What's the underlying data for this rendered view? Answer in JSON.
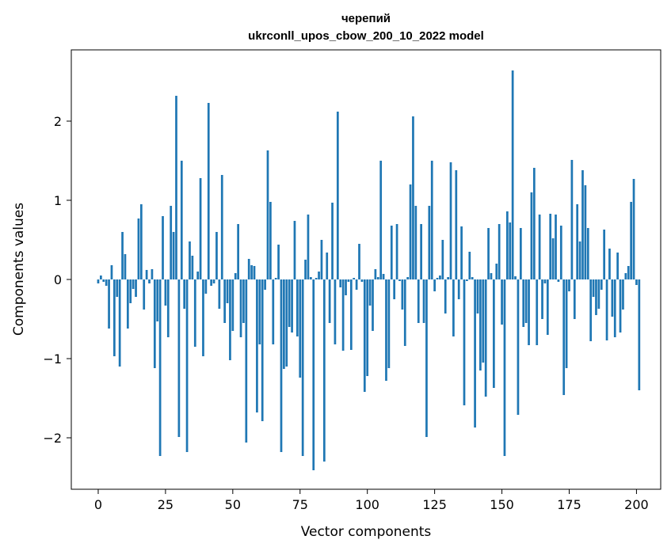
{
  "chart_data": {
    "type": "bar",
    "title_line1": "черепий",
    "title_line2": "ukrconll_upos_cbow_200_10_2022 model",
    "xlabel": "Vector components",
    "ylabel": "Components values",
    "xlim": [
      -10,
      209
    ],
    "ylim": [
      -2.65,
      2.9
    ],
    "x_ticks": [
      0,
      25,
      50,
      75,
      100,
      125,
      150,
      175,
      200
    ],
    "y_ticks": [
      -2,
      -1,
      0,
      1,
      2
    ],
    "x_tick_labels": [
      "0",
      "25",
      "50",
      "75",
      "100",
      "125",
      "150",
      "175",
      "200"
    ],
    "y_tick_labels": [
      "−2",
      "−1",
      "0",
      "1",
      "2"
    ],
    "bar_color": "#1f77b4",
    "grid": false,
    "values": [
      -0.05,
      0.05,
      -0.03,
      -0.08,
      -0.62,
      0.18,
      -0.97,
      -0.22,
      -1.1,
      0.6,
      0.32,
      -0.62,
      -0.3,
      -0.12,
      -0.22,
      0.77,
      0.95,
      -0.38,
      0.12,
      -0.05,
      0.13,
      -1.12,
      -0.53,
      -2.23,
      0.8,
      -0.33,
      -0.73,
      0.93,
      0.6,
      2.32,
      -1.99,
      1.5,
      -0.37,
      -2.18,
      0.48,
      0.3,
      -0.85,
      0.1,
      1.28,
      -0.97,
      -0.18,
      2.23,
      -0.08,
      -0.05,
      0.6,
      -0.37,
      1.32,
      -0.55,
      -0.3,
      -1.02,
      -0.65,
      0.08,
      0.7,
      -0.73,
      -0.55,
      -2.06,
      0.26,
      0.18,
      0.17,
      -1.68,
      -0.82,
      -1.79,
      -0.13,
      1.63,
      0.98,
      -0.82,
      0.02,
      0.44,
      -2.18,
      -1.13,
      -1.1,
      -0.6,
      -0.67,
      0.74,
      -0.72,
      -1.24,
      -2.23,
      0.25,
      0.82,
      0.03,
      -2.41,
      0.02,
      0.1,
      0.5,
      -2.3,
      0.34,
      -0.55,
      0.97,
      -0.82,
      2.12,
      -0.1,
      -0.9,
      -0.2,
      -0.03,
      -0.89,
      0.02,
      -0.13,
      0.45,
      -0.03,
      -1.42,
      -1.22,
      -0.33,
      -0.65,
      0.13,
      0.03,
      1.5,
      0.07,
      -1.28,
      -1.12,
      0.68,
      -0.25,
      0.7,
      -0.02,
      -0.38,
      -0.84,
      0.03,
      1.2,
      2.06,
      0.93,
      -0.55,
      0.7,
      -0.55,
      -1.99,
      0.93,
      1.5,
      -0.15,
      0.02,
      0.05,
      0.5,
      -0.43,
      0.03,
      1.48,
      -0.72,
      1.38,
      -0.25,
      0.67,
      -1.59,
      -0.02,
      0.35,
      0.03,
      -1.87,
      -0.43,
      -1.15,
      -1.05,
      -1.48,
      0.65,
      0.08,
      -1.37,
      0.2,
      0.7,
      -0.57,
      -2.23,
      0.86,
      0.72,
      2.64,
      0.04,
      -1.71,
      0.65,
      -0.6,
      -0.55,
      -0.83,
      1.1,
      1.41,
      -0.83,
      0.82,
      -0.5,
      -0.05,
      -0.7,
      0.83,
      0.52,
      0.82,
      -0.03,
      0.68,
      -1.46,
      -1.12,
      -0.15,
      1.51,
      -0.5,
      0.95,
      0.48,
      1.38,
      1.19,
      0.65,
      -0.78,
      -0.22,
      -0.45,
      -0.37,
      -0.13,
      0.63,
      -0.77,
      0.39,
      -0.47,
      -0.73,
      0.34,
      -0.67,
      -0.38,
      0.08,
      0.17,
      0.98,
      1.27,
      -0.07,
      -1.4
    ]
  }
}
